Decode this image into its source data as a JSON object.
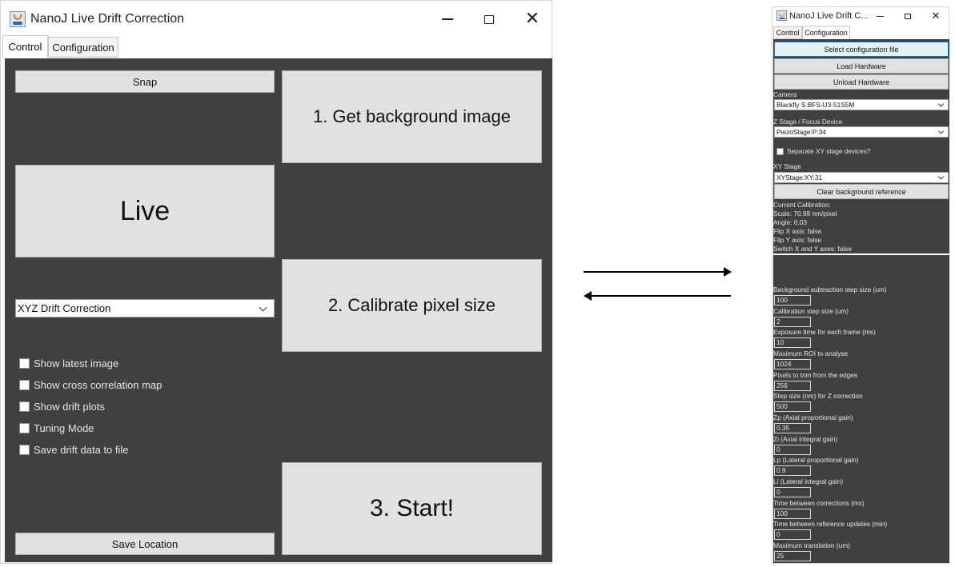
{
  "control_window": {
    "title": "NanoJ Live Drift Correction",
    "tabs": [
      "Control",
      "Configuration"
    ],
    "buttons": {
      "snap": "Snap",
      "get_background": "1. Get background image",
      "live": "Live",
      "calibrate": "2. Calibrate pixel size",
      "start": "3. Start!",
      "save_location": "Save Location"
    },
    "mode_select": {
      "value": "XYZ Drift Correction"
    },
    "checkboxes": [
      {
        "label": "Show latest image",
        "checked": false
      },
      {
        "label": "Show cross correlation map",
        "checked": false
      },
      {
        "label": "Show drift plots",
        "checked": false
      },
      {
        "label": "Tuning Mode",
        "checked": false
      },
      {
        "label": "Save drift data to file",
        "checked": false
      }
    ],
    "panel_color": "#404040"
  },
  "config_window": {
    "title": "NanoJ Live Drift C...",
    "tabs": [
      "Control",
      "Configuration"
    ],
    "buttons": {
      "select_config": "Select configuration file",
      "load_hardware": "Load Hardware",
      "unload_hardware": "Unload Hardware",
      "clear_background": "Clear background reference"
    },
    "camera": {
      "label": "Camera",
      "value": "Blackfly S BFS-U3-51S5M"
    },
    "z_stage": {
      "label": "Z Stage / Focus Device",
      "value": "PiezoStage:P:34"
    },
    "separate_xy": {
      "label": "Separate XY stage devices?",
      "checked": false
    },
    "xy_stage": {
      "label": "XY Stage",
      "value": "XYStage:XY:31"
    },
    "calibration": [
      "Current Calibration:",
      "Scale: 70.98 nm/pixel",
      "Angle: 0.03",
      "Flip X axis: false",
      "Flip Y axis: false",
      "Switch X and Y axes: false"
    ],
    "fields": [
      {
        "label": "Background subtraction step size (um)",
        "value": "100"
      },
      {
        "label": "Calibration step size (um)",
        "value": "2"
      },
      {
        "label": "Exposure time for each frame (ms)",
        "value": "10"
      },
      {
        "label": "Maximum ROI to analyse",
        "value": "1024"
      },
      {
        "label": "Pixels to trim from the edges",
        "value": "256"
      },
      {
        "label": "Step size (nm) for Z correction",
        "value": "500"
      },
      {
        "label": "Zp (Axial proportional gain)",
        "value": "0.35"
      },
      {
        "label": "Zi (Axial integral gain)",
        "value": "0"
      },
      {
        "label": "Lp (Lateral proportional gain)",
        "value": "0.9"
      },
      {
        "label": "Li (Lateral integral gain)",
        "value": "0"
      },
      {
        "label": "Time between corrections (ms)",
        "value": "100"
      },
      {
        "label": "Time between reference updates (min)",
        "value": "0"
      },
      {
        "label": "Maximum translation (um)",
        "value": "25"
      }
    ]
  }
}
